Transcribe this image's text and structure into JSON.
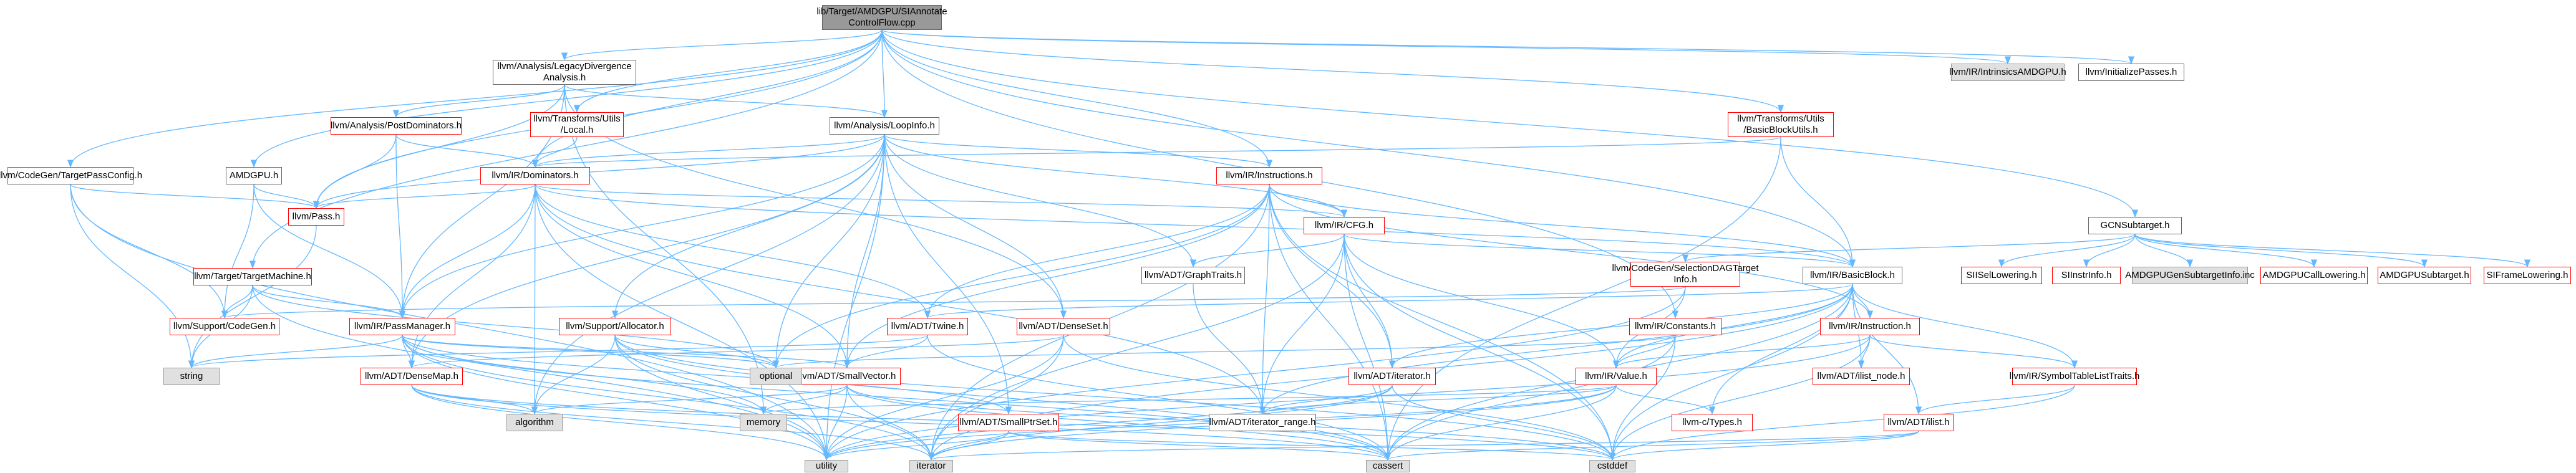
{
  "colors": {
    "edge": "#63b8ff",
    "red_border": "#ff0000",
    "gray_fill": "#e0e0e0",
    "root_fill": "#999999"
  },
  "nodes": {
    "root": "lib/Target/AMDGPU/SIAnnotate\nControlFlow.cpp",
    "legacy": "llvm/Analysis/LegacyDivergence\nAnalysis.h",
    "intrinsics": "llvm/IR/IntrinsicsAMDGPU.h",
    "initpasses": "llvm/InitializePasses.h",
    "codegen_tpc": "llvm/CodeGen/TargetPassConfig.h",
    "amdgpu_h": "AMDGPU.h",
    "postdom": "llvm/Analysis/PostDominators.h",
    "transutils_local": "llvm/Transforms/Utils\n/Local.h",
    "loopinfo": "llvm/Analysis/LoopInfo.h",
    "bbutils": "llvm/Transforms/Utils\n/BasicBlockUtils.h",
    "dominators": "llvm/IR/Dominators.h",
    "instructions": "llvm/IR/Instructions.h",
    "pass": "llvm/Pass.h",
    "targetmachine": "llvm/Target/TargetMachine.h",
    "support_codegen": "llvm/Support/CodeGen.h",
    "passmanager": "llvm/IR/PassManager.h",
    "support_allocator": "llvm/Support/Allocator.h",
    "twine": "llvm/ADT/Twine.h",
    "densemap": "llvm/ADT/DenseMap.h",
    "denseset": "llvm/ADT/DenseSet.h",
    "smallvector": "llvm/ADT/SmallVector.h",
    "cfg": "llvm/IR/CFG.h",
    "graphtraits": "llvm/ADT/GraphTraits.h",
    "gcnsubtarget": "GCNSubtarget.h",
    "selectiondag": "llvm/CodeGen/SelectionDAGTarget\nInfo.h",
    "basicblock": "llvm/IR/BasicBlock.h",
    "constants": "llvm/IR/Constants.h",
    "instruction": "llvm/IR/Instruction.h",
    "iterator": "llvm/ADT/iterator.h",
    "value": "llvm/IR/Value.h",
    "ilist_node": "llvm/ADT/ilist_node.h",
    "symboltable": "llvm/IR/SymbolTableListTraits.h",
    "ilist": "llvm/ADT/ilist.h",
    "smallptrset": "llvm/ADT/SmallPtrSet.h",
    "iterator_range": "llvm/ADT/iterator_range.h",
    "ctypes": "llvm-c/Types.h",
    "sisellowering": "SIISelLowering.h",
    "siinstrinfo": "SIInstrInfo.h",
    "amdgpugensubtarget": "AMDGPUGenSubtargetInfo.inc",
    "amdgpucalllowering": "AMDGPUCallLowering.h",
    "amdgpusubtarget": "AMDGPUSubtarget.h",
    "siframelowering": "SIFrameLowering.h",
    "string": "string",
    "optional": "optional",
    "algorithm": "algorithm",
    "memory": "memory",
    "utility": "utility",
    "iterator_std": "iterator",
    "cassert": "cassert",
    "cstddef": "cstddef"
  }
}
